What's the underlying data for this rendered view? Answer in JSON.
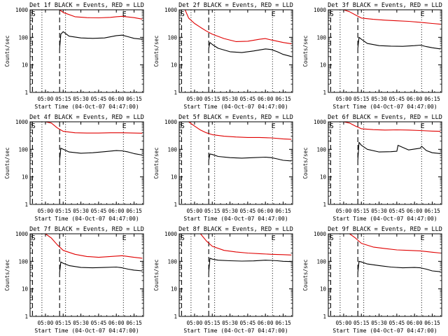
{
  "figure": {
    "xlabel": "Start Time (04-Oct-07 04:47:00)",
    "ylabel": "Counts/sec"
  },
  "chart_data": [
    {
      "type": "line",
      "title": "Det 1f BLACK = Events, RED = LLD",
      "xlabel": "Start Time (04-Oct-07 04:47:00)",
      "ylabel": "Counts/sec",
      "y_scale": "log",
      "ylim": [
        1,
        1000
      ],
      "xlim": [
        "04:47",
        "06:23"
      ],
      "x_ticks": [
        "05:00",
        "05:15",
        "05:30",
        "05:45",
        "06:00",
        "06:15"
      ],
      "y_ticks": [
        "1",
        "10",
        "100",
        "1000"
      ],
      "markers": {
        "S_time": "04:48",
        "E_time": "06:05",
        "dashed_lines": [
          "04:49",
          "05:12"
        ],
        "dotted_lines": [
          "04:57",
          "05:17",
          "06:06"
        ]
      },
      "series": [
        {
          "name": "LLD",
          "color": "#e00000",
          "x": [
            "04:49",
            "04:55",
            "05:05",
            "05:12",
            "05:15",
            "05:25",
            "05:35",
            "05:45",
            "05:55",
            "06:00",
            "06:05",
            "06:15",
            "06:22"
          ],
          "values": [
            1000,
            1000,
            1000,
            1000,
            800,
            560,
            520,
            510,
            530,
            560,
            580,
            520,
            460
          ]
        },
        {
          "name": "Events",
          "color": "#000000",
          "x": [
            "05:12",
            "05:13",
            "05:15",
            "05:20",
            "05:30",
            "05:40",
            "05:50",
            "06:00",
            "06:05",
            "06:10",
            "06:15",
            "06:22"
          ],
          "values": [
            40,
            130,
            160,
            110,
            95,
            92,
            95,
            115,
            120,
            105,
            92,
            85
          ]
        }
      ]
    },
    {
      "type": "line",
      "title": "Det 2f BLACK = Events, RED = LLD",
      "xlabel": "Start Time (04-Oct-07 04:47:00)",
      "ylabel": "Counts/sec",
      "y_scale": "log",
      "ylim": [
        1,
        1000
      ],
      "xlim": [
        "04:47",
        "06:23"
      ],
      "x_ticks": [
        "05:00",
        "05:15",
        "05:30",
        "05:45",
        "06:00",
        "06:15"
      ],
      "y_ticks": [
        "1",
        "10",
        "100",
        "1000"
      ],
      "markers": {
        "S_time": "04:48",
        "E_time": "06:05",
        "dashed_lines": [
          "04:49",
          "05:12"
        ],
        "dotted_lines": [
          "04:57",
          "05:17",
          "06:06"
        ]
      },
      "series": [
        {
          "name": "LLD",
          "color": "#e00000",
          "x": [
            "04:52",
            "04:55",
            "05:00",
            "05:05",
            "05:10",
            "05:15",
            "05:25",
            "05:35",
            "05:45",
            "05:55",
            "06:00",
            "06:05",
            "06:15",
            "06:22"
          ],
          "values": [
            1000,
            500,
            320,
            230,
            170,
            130,
            90,
            70,
            72,
            85,
            90,
            80,
            65,
            58
          ]
        },
        {
          "name": "Events",
          "color": "#000000",
          "x": [
            "05:12",
            "05:13",
            "05:15",
            "05:20",
            "05:30",
            "05:40",
            "05:50",
            "06:00",
            "06:05",
            "06:10",
            "06:15",
            "06:22"
          ],
          "values": [
            40,
            65,
            55,
            40,
            30,
            28,
            32,
            38,
            36,
            30,
            24,
            20
          ]
        }
      ]
    },
    {
      "type": "line",
      "title": "Det 3f BLACK = Events, RED = LLD",
      "xlabel": "Start Time (04-Oct-07 04:47:00)",
      "ylabel": "Counts/sec",
      "y_scale": "log",
      "ylim": [
        1,
        1000
      ],
      "xlim": [
        "04:47",
        "06:23"
      ],
      "x_ticks": [
        "05:00",
        "05:15",
        "05:30",
        "05:45",
        "06:00",
        "06:15"
      ],
      "y_ticks": [
        "1",
        "10",
        "100",
        "1000"
      ],
      "markers": {
        "S_time": "04:48",
        "E_time": "06:05",
        "dashed_lines": [
          "04:49",
          "05:12"
        ],
        "dotted_lines": [
          "04:57",
          "05:17",
          "06:06"
        ]
      },
      "series": [
        {
          "name": "LLD",
          "color": "#e00000",
          "x": [
            "04:51",
            "04:55",
            "05:00",
            "05:05",
            "05:10",
            "05:15",
            "05:25",
            "05:35",
            "05:45",
            "05:55",
            "06:05",
            "06:15",
            "06:22"
          ],
          "values": [
            1000,
            1000,
            1000,
            850,
            650,
            500,
            450,
            420,
            400,
            380,
            350,
            320,
            300
          ]
        },
        {
          "name": "Events",
          "color": "#000000",
          "x": [
            "05:12",
            "05:13",
            "05:15",
            "05:20",
            "05:30",
            "05:40",
            "05:50",
            "06:00",
            "06:05",
            "06:10",
            "06:15",
            "06:22"
          ],
          "values": [
            40,
            100,
            85,
            60,
            50,
            48,
            47,
            50,
            52,
            46,
            42,
            38
          ]
        }
      ]
    },
    {
      "type": "line",
      "title": "Det 4f BLACK = Events, RED = LLD",
      "xlabel": "Start Time (04-Oct-07 04:47:00)",
      "ylabel": "Counts/sec",
      "y_scale": "log",
      "ylim": [
        1,
        1000
      ],
      "xlim": [
        "04:47",
        "06:23"
      ],
      "x_ticks": [
        "05:00",
        "05:15",
        "05:30",
        "05:45",
        "06:00",
        "06:15"
      ],
      "y_ticks": [
        "1",
        "10",
        "100",
        "1000"
      ],
      "markers": {
        "S_time": "04:48",
        "E_time": "06:05",
        "dashed_lines": [
          "04:49",
          "05:12"
        ],
        "dotted_lines": [
          "04:57",
          "05:17",
          "06:06"
        ]
      },
      "series": [
        {
          "name": "LLD",
          "color": "#e00000",
          "x": [
            "04:51",
            "04:55",
            "05:00",
            "05:05",
            "05:10",
            "05:15",
            "05:25",
            "05:35",
            "05:45",
            "05:55",
            "06:05",
            "06:15",
            "06:22"
          ],
          "values": [
            1000,
            1000,
            1000,
            900,
            600,
            450,
            400,
            390,
            390,
            400,
            400,
            390,
            385
          ]
        },
        {
          "name": "Events",
          "color": "#000000",
          "x": [
            "05:12",
            "05:13",
            "05:15",
            "05:20",
            "05:30",
            "05:40",
            "05:50",
            "06:00",
            "06:05",
            "06:10",
            "06:15",
            "06:22"
          ],
          "values": [
            40,
            110,
            100,
            80,
            72,
            75,
            82,
            90,
            88,
            80,
            70,
            62
          ]
        }
      ]
    },
    {
      "type": "line",
      "title": "Det 5f BLACK = Events, RED = LLD",
      "xlabel": "Start Time (04-Oct-07 04:47:00)",
      "ylabel": "Counts/sec",
      "y_scale": "log",
      "ylim": [
        1,
        1000
      ],
      "xlim": [
        "04:47",
        "06:23"
      ],
      "x_ticks": [
        "05:00",
        "05:15",
        "05:30",
        "05:45",
        "06:00",
        "06:15"
      ],
      "y_ticks": [
        "1",
        "10",
        "100",
        "1000"
      ],
      "markers": {
        "S_time": "04:48",
        "E_time": "06:05",
        "dashed_lines": [
          "04:49",
          "05:12"
        ],
        "dotted_lines": [
          "04:57",
          "05:17",
          "06:06"
        ]
      },
      "series": [
        {
          "name": "LLD",
          "color": "#e00000",
          "x": [
            "04:55",
            "05:00",
            "05:05",
            "05:10",
            "05:15",
            "05:25",
            "05:35",
            "05:45",
            "05:55",
            "06:05",
            "06:15",
            "06:22"
          ],
          "values": [
            1000,
            700,
            500,
            400,
            340,
            300,
            280,
            270,
            270,
            260,
            240,
            230
          ]
        },
        {
          "name": "Events",
          "color": "#000000",
          "x": [
            "05:12",
            "05:13",
            "05:15",
            "05:20",
            "05:30",
            "05:40",
            "05:50",
            "06:00",
            "06:05",
            "06:10",
            "06:15",
            "06:22"
          ],
          "values": [
            40,
            68,
            65,
            55,
            50,
            48,
            50,
            52,
            50,
            45,
            40,
            38
          ]
        }
      ]
    },
    {
      "type": "line",
      "title": "Det 6f BLACK = Events, RED = LLD",
      "xlabel": "Start Time (04-Oct-07 04:47:00)",
      "ylabel": "Counts/sec",
      "y_scale": "log",
      "ylim": [
        1,
        1000
      ],
      "xlim": [
        "04:47",
        "06:23"
      ],
      "x_ticks": [
        "05:00",
        "05:15",
        "05:30",
        "05:45",
        "06:00",
        "06:15"
      ],
      "y_ticks": [
        "1",
        "10",
        "100",
        "1000"
      ],
      "markers": {
        "S_time": "04:48",
        "E_time": "06:05",
        "dashed_lines": [
          "04:49",
          "05:12"
        ],
        "dotted_lines": [
          "04:57",
          "05:17",
          "06:06"
        ]
      },
      "series": [
        {
          "name": "LLD",
          "color": "#e00000",
          "x": [
            "04:55",
            "05:00",
            "05:05",
            "05:10",
            "05:15",
            "05:25",
            "05:35",
            "05:45",
            "05:55",
            "06:05",
            "06:15",
            "06:22"
          ],
          "values": [
            1000,
            1000,
            900,
            700,
            560,
            520,
            500,
            510,
            500,
            480,
            460,
            450
          ]
        },
        {
          "name": "Events",
          "color": "#000000",
          "x": [
            "05:12",
            "05:13",
            "05:15",
            "05:20",
            "05:30",
            "05:40",
            "05:45",
            "05:46",
            "05:55",
            "06:05",
            "06:06",
            "06:10",
            "06:15",
            "06:22"
          ],
          "values": [
            40,
            180,
            140,
            100,
            80,
            82,
            85,
            140,
            95,
            110,
            130,
            90,
            75,
            70
          ]
        }
      ]
    },
    {
      "type": "line",
      "title": "Det 7f BLACK = Events, RED = LLD",
      "xlabel": "Start Time (04-Oct-07 04:47:00)",
      "ylabel": "Counts/sec",
      "y_scale": "log",
      "ylim": [
        1,
        1000
      ],
      "xlim": [
        "04:47",
        "06:23"
      ],
      "x_ticks": [
        "05:00",
        "05:15",
        "05:30",
        "05:45",
        "06:00",
        "06:15"
      ],
      "y_ticks": [
        "1",
        "10",
        "100",
        "1000"
      ],
      "markers": {
        "S_time": "04:48",
        "E_time": "06:05",
        "dashed_lines": [
          "04:49",
          "05:12"
        ],
        "dotted_lines": [
          "04:57",
          "05:17",
          "06:06"
        ]
      },
      "series": [
        {
          "name": "LLD",
          "color": "#e00000",
          "x": [
            "05:00",
            "05:05",
            "05:10",
            "05:15",
            "05:25",
            "05:35",
            "05:45",
            "05:55",
            "06:05",
            "06:15",
            "06:22"
          ],
          "values": [
            1000,
            700,
            400,
            250,
            180,
            150,
            140,
            150,
            160,
            140,
            130
          ]
        },
        {
          "name": "Events",
          "color": "#000000",
          "x": [
            "05:12",
            "05:13",
            "05:15",
            "05:20",
            "05:30",
            "05:40",
            "05:50",
            "06:00",
            "06:05",
            "06:10",
            "06:15",
            "06:22"
          ],
          "values": [
            40,
            95,
            85,
            70,
            60,
            58,
            60,
            62,
            58,
            52,
            48,
            45
          ]
        }
      ]
    },
    {
      "type": "line",
      "title": "Det 8f BLACK = Events, RED = LLD",
      "xlabel": "Start Time (04-Oct-07 04:47:00)",
      "ylabel": "Counts/sec",
      "y_scale": "log",
      "ylim": [
        1,
        1000
      ],
      "xlim": [
        "04:47",
        "06:23"
      ],
      "x_ticks": [
        "05:00",
        "05:15",
        "05:30",
        "05:45",
        "06:00",
        "06:15"
      ],
      "y_ticks": [
        "1",
        "10",
        "100",
        "1000"
      ],
      "markers": {
        "S_time": "04:48",
        "E_time": "06:05",
        "dashed_lines": [
          "04:49",
          "05:12"
        ],
        "dotted_lines": [
          "04:57",
          "05:17",
          "06:06"
        ]
      },
      "series": [
        {
          "name": "LLD",
          "color": "#e00000",
          "x": [
            "05:05",
            "05:10",
            "05:15",
            "05:25",
            "05:35",
            "05:45",
            "05:55",
            "06:05",
            "06:15",
            "06:22"
          ],
          "values": [
            1000,
            550,
            350,
            250,
            220,
            200,
            190,
            180,
            175,
            170
          ]
        },
        {
          "name": "Events",
          "color": "#000000",
          "x": [
            "05:12",
            "05:13",
            "05:15",
            "05:20",
            "05:30",
            "05:40",
            "05:50",
            "06:00",
            "06:05",
            "06:10",
            "06:15",
            "06:22"
          ],
          "values": [
            40,
            130,
            120,
            110,
            105,
            102,
            104,
            110,
            108,
            105,
            100,
            98
          ]
        }
      ]
    },
    {
      "type": "line",
      "title": "Det 9f BLACK = Events, RED = LLD",
      "xlabel": "Start Time (04-Oct-07 04:47:00)",
      "ylabel": "Counts/sec",
      "y_scale": "log",
      "ylim": [
        1,
        1000
      ],
      "xlim": [
        "04:47",
        "06:23"
      ],
      "x_ticks": [
        "05:00",
        "05:15",
        "05:30",
        "05:45",
        "06:00",
        "06:15"
      ],
      "y_ticks": [
        "1",
        "10",
        "100",
        "1000"
      ],
      "markers": {
        "S_time": "04:48",
        "E_time": "06:05",
        "dashed_lines": [
          "04:49",
          "05:12"
        ],
        "dotted_lines": [
          "04:57",
          "05:17",
          "06:06"
        ]
      },
      "series": [
        {
          "name": "LLD",
          "color": "#e00000",
          "x": [
            "05:05",
            "05:10",
            "05:15",
            "05:25",
            "05:35",
            "05:45",
            "05:55",
            "06:05",
            "06:15",
            "06:22"
          ],
          "values": [
            1000,
            700,
            450,
            330,
            290,
            260,
            250,
            240,
            215,
            200
          ]
        },
        {
          "name": "Events",
          "color": "#000000",
          "x": [
            "05:12",
            "05:13",
            "05:15",
            "05:20",
            "05:30",
            "05:40",
            "05:50",
            "06:00",
            "06:05",
            "06:10",
            "06:15",
            "06:22"
          ],
          "values": [
            40,
            100,
            95,
            80,
            70,
            62,
            58,
            60,
            58,
            52,
            45,
            42
          ]
        }
      ]
    }
  ]
}
